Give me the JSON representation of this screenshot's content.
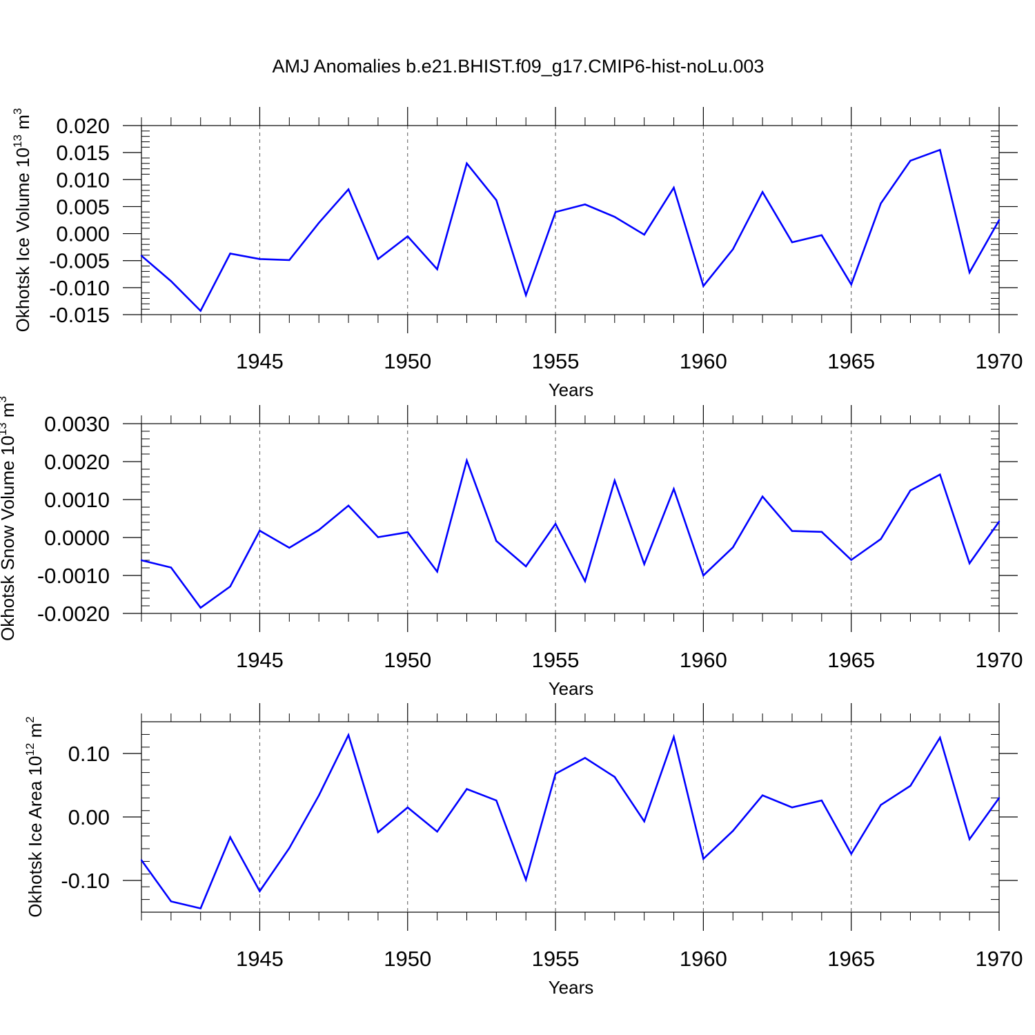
{
  "title": "AMJ Anomalies b.e21.BHIST.f09_g17.CMIP6-hist-noLu.003",
  "colors": {
    "line": "#0000ff",
    "axis": "#000000",
    "grid": "#555555"
  },
  "chart_data": [
    {
      "type": "line",
      "ylabel": {
        "text": "Okhotsk Ice Volume 10",
        "exp": "13",
        "unit": " m",
        "unit_exp": "3"
      },
      "xlabel": "Years",
      "xlim": [
        1941,
        1970
      ],
      "ylim": [
        -0.015,
        0.02
      ],
      "yticks": [
        -0.015,
        -0.01,
        -0.005,
        0.0,
        0.005,
        0.01,
        0.015,
        0.02
      ],
      "ytick_labels": [
        "-0.015",
        "-0.010",
        "-0.005",
        "0.000",
        "0.005",
        "0.010",
        "0.015",
        "0.020"
      ],
      "xticks": [
        1945,
        1950,
        1955,
        1960,
        1965,
        1970
      ],
      "xtick_labels": [
        "1945",
        "1950",
        "1955",
        "1960",
        "1965",
        "1970"
      ],
      "grid": "vertical dashed at major x ticks",
      "x": [
        1941,
        1942,
        1943,
        1944,
        1945,
        1946,
        1947,
        1948,
        1949,
        1950,
        1951,
        1952,
        1953,
        1954,
        1955,
        1956,
        1957,
        1958,
        1959,
        1960,
        1961,
        1962,
        1963,
        1964,
        1965,
        1966,
        1967,
        1968,
        1969,
        1970
      ],
      "values": [
        -0.0041,
        -0.0088,
        -0.0143,
        -0.0037,
        -0.0047,
        -0.0049,
        0.002,
        0.0082,
        -0.0047,
        -0.0005,
        -0.0066,
        0.013,
        0.0062,
        -0.0114,
        0.004,
        0.0054,
        0.0031,
        -0.0002,
        0.0085,
        -0.0097,
        -0.0029,
        0.0077,
        -0.0016,
        -0.0003,
        -0.0094,
        0.0056,
        0.0135,
        0.0155,
        -0.0072,
        0.0025
      ]
    },
    {
      "type": "line",
      "ylabel": {
        "text": "Okhotsk Snow Volume 10",
        "exp": "13",
        "unit": " m",
        "unit_exp": "3"
      },
      "xlabel": "Years",
      "xlim": [
        1941,
        1970
      ],
      "ylim": [
        -0.002,
        0.003
      ],
      "yticks": [
        -0.002,
        -0.001,
        0.0,
        0.001,
        0.002,
        0.003
      ],
      "ytick_labels": [
        "-0.0020",
        "-0.0010",
        "0.0000",
        "0.0010",
        "0.0020",
        "0.0030"
      ],
      "xticks": [
        1945,
        1950,
        1955,
        1960,
        1965,
        1970
      ],
      "xtick_labels": [
        "1945",
        "1950",
        "1955",
        "1960",
        "1965",
        "1970"
      ],
      "grid": "vertical dashed at major x ticks",
      "x": [
        1941,
        1942,
        1943,
        1944,
        1945,
        1946,
        1947,
        1948,
        1949,
        1950,
        1951,
        1952,
        1953,
        1954,
        1955,
        1956,
        1957,
        1958,
        1959,
        1960,
        1961,
        1962,
        1963,
        1964,
        1965,
        1966,
        1967,
        1968,
        1969,
        1970
      ],
      "values": [
        -0.0006,
        -0.00079,
        -0.00185,
        -0.00129,
        0.00018,
        -0.00027,
        0.0002,
        0.00084,
        1e-05,
        0.00014,
        -0.0009,
        0.00203,
        -9e-05,
        -0.00076,
        0.00036,
        -0.00115,
        0.0015,
        -0.0007,
        0.00128,
        -0.001,
        -0.00026,
        0.00108,
        0.00017,
        0.00015,
        -0.00059,
        -4e-05,
        0.00124,
        0.00166,
        -0.00068,
        0.00042
      ]
    },
    {
      "type": "line",
      "ylabel": {
        "text": "Okhotsk Ice Area 10",
        "exp": "12",
        "unit": " m",
        "unit_exp": "2"
      },
      "xlabel": "Years",
      "xlim": [
        1941,
        1970
      ],
      "ylim": [
        -0.15,
        0.15
      ],
      "yticks": [
        -0.1,
        0.0,
        0.1
      ],
      "ytick_labels": [
        "-0.10",
        "0.00",
        "0.10"
      ],
      "xticks": [
        1945,
        1950,
        1955,
        1960,
        1965,
        1970
      ],
      "xtick_labels": [
        "1945",
        "1950",
        "1955",
        "1960",
        "1965",
        "1970"
      ],
      "grid": "vertical dashed at major x ticks",
      "x": [
        1941,
        1942,
        1943,
        1944,
        1945,
        1946,
        1947,
        1948,
        1949,
        1950,
        1951,
        1952,
        1953,
        1954,
        1955,
        1956,
        1957,
        1958,
        1959,
        1960,
        1961,
        1962,
        1963,
        1964,
        1965,
        1966,
        1967,
        1968,
        1969,
        1970
      ],
      "values": [
        -0.068,
        -0.133,
        -0.144,
        -0.032,
        -0.117,
        -0.049,
        0.034,
        0.129,
        -0.024,
        0.015,
        -0.023,
        0.044,
        0.026,
        -0.099,
        0.068,
        0.093,
        0.063,
        -0.007,
        0.126,
        -0.066,
        -0.022,
        0.034,
        0.015,
        0.026,
        -0.058,
        0.019,
        0.049,
        0.125,
        -0.035,
        0.03
      ]
    }
  ]
}
